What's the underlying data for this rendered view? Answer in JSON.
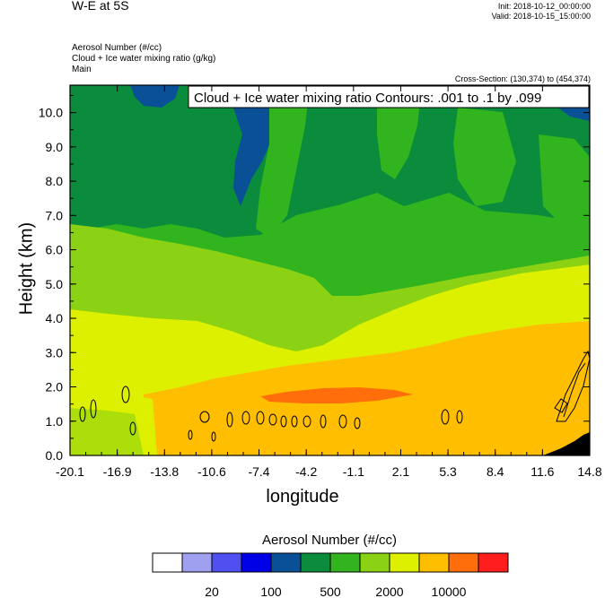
{
  "header": {
    "title": "W-E at 5S",
    "init": "Init: 2018-10-12_00:00:00",
    "valid": "Valid: 2018-10-15_15:00:00",
    "fields": [
      "Aerosol Number   (#/cc)",
      "Cloud + Ice water mixing ratio   (g/kg)",
      "Main"
    ],
    "cross_section": "Cross-Section: (130,374) to (454,374)"
  },
  "chart_data": {
    "type": "heatmap",
    "title": "W-E at 5S",
    "xlabel": "longitude",
    "ylabel": "Height (km)",
    "xlim": [
      -20.1,
      14.8
    ],
    "ylim": [
      0.0,
      10.8
    ],
    "x_ticks": [
      "-20.1",
      "-16.9",
      "-13.8",
      "-10.6",
      "-7.4",
      "-4.2",
      "-1.1",
      "2.1",
      "5.3",
      "8.4",
      "11.6",
      "14.8"
    ],
    "y_ticks": [
      "0.0",
      "1.0",
      "2.0",
      "3.0",
      "4.0",
      "5.0",
      "6.0",
      "7.0",
      "8.0",
      "9.0",
      "10.0"
    ],
    "contour_annotation": "Cloud + Ice water mixing ratio Contours: .001 to .1 by .099",
    "colorbar": {
      "title": "Aerosol Number  (#/cc)",
      "colors": [
        "#ffffff",
        "#a0a0f0",
        "#5050f0",
        "#0000e6",
        "#0a5096",
        "#0a8c3c",
        "#32b41e",
        "#8cd214",
        "#dcf000",
        "#ffbe00",
        "#ff6e0a",
        "#ff1e1e"
      ],
      "labels": [
        "20",
        "100",
        "500",
        "2000",
        "10000"
      ]
    }
  }
}
